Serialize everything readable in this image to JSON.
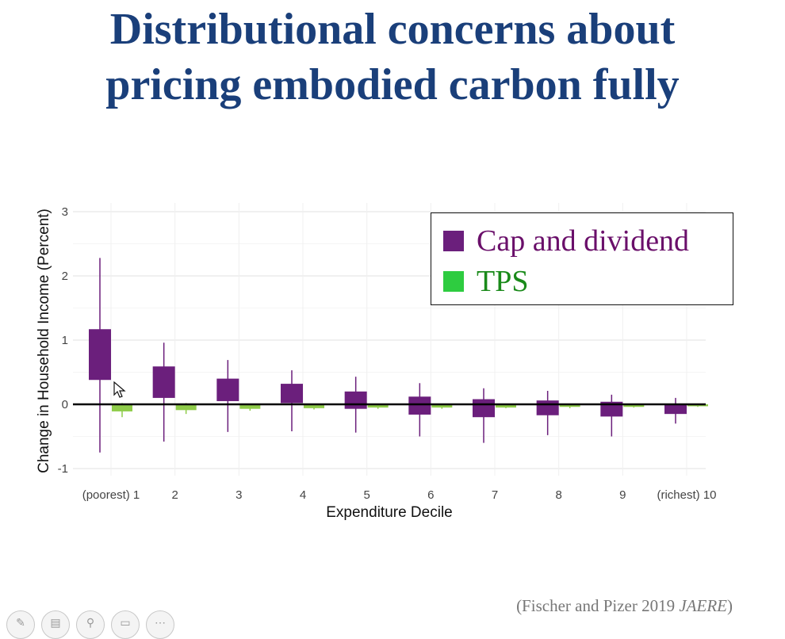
{
  "slide": {
    "title_line1": "Distributional concerns about",
    "title_line2": "pricing embodied carbon fully",
    "citation_authors": "(Fischer and Pizer 2019 ",
    "citation_journal": "JAERE",
    "citation_close": ")"
  },
  "toolbar": {
    "buttons": [
      {
        "name": "pen-icon",
        "glyph": "✎"
      },
      {
        "name": "slides-icon",
        "glyph": "▤"
      },
      {
        "name": "zoom-icon",
        "glyph": "⚲"
      },
      {
        "name": "subtitles-icon",
        "glyph": "▭"
      },
      {
        "name": "more-icon",
        "glyph": "⋯"
      }
    ]
  },
  "colors": {
    "title": "#1a3f7a",
    "cap_and_dividend": "#6b1f7c",
    "tps": "#8fcc4a",
    "legend_tps": "#2ecc40",
    "legend_cap_text": "#6a0f6a",
    "legend_tps_text": "#1a8a1a"
  },
  "chart_data": {
    "type": "box",
    "xlabel": "Expenditure Decile",
    "ylabel": "Change in Household Income (Percent)",
    "ylim": [
      -1.15,
      3.15
    ],
    "yticks": [
      -1,
      0,
      1,
      2,
      3
    ],
    "grid": true,
    "legend_position": "top-right",
    "categories": [
      "(poorest) 1",
      "2",
      "3",
      "4",
      "5",
      "6",
      "7",
      "8",
      "9",
      "(richest) 10"
    ],
    "series": [
      {
        "name": "Cap and dividend",
        "low": [
          -0.75,
          -0.58,
          -0.43,
          -0.42,
          -0.44,
          -0.5,
          -0.6,
          -0.48,
          -0.5,
          -0.3
        ],
        "q1": [
          0.38,
          0.1,
          0.05,
          0.02,
          -0.07,
          -0.16,
          -0.2,
          -0.17,
          -0.19,
          -0.15
        ],
        "q3": [
          1.17,
          0.59,
          0.4,
          0.32,
          0.2,
          0.12,
          0.08,
          0.06,
          0.04,
          0.0
        ],
        "high": [
          2.28,
          0.96,
          0.69,
          0.53,
          0.43,
          0.33,
          0.25,
          0.21,
          0.15,
          0.1
        ]
      },
      {
        "name": "TPS",
        "low": [
          -0.2,
          -0.15,
          -0.1,
          -0.08,
          -0.07,
          -0.07,
          -0.06,
          -0.06,
          -0.05,
          -0.04
        ],
        "q1": [
          -0.11,
          -0.09,
          -0.07,
          -0.06,
          -0.05,
          -0.05,
          -0.05,
          -0.04,
          -0.04,
          -0.03
        ],
        "q3": [
          -0.01,
          -0.01,
          -0.01,
          -0.01,
          0.0,
          0.0,
          0.0,
          0.0,
          0.0,
          0.0
        ],
        "high": [
          0.02,
          0.02,
          0.01,
          0.01,
          0.01,
          0.01,
          0.01,
          0.01,
          0.01,
          0.01
        ]
      }
    ]
  }
}
